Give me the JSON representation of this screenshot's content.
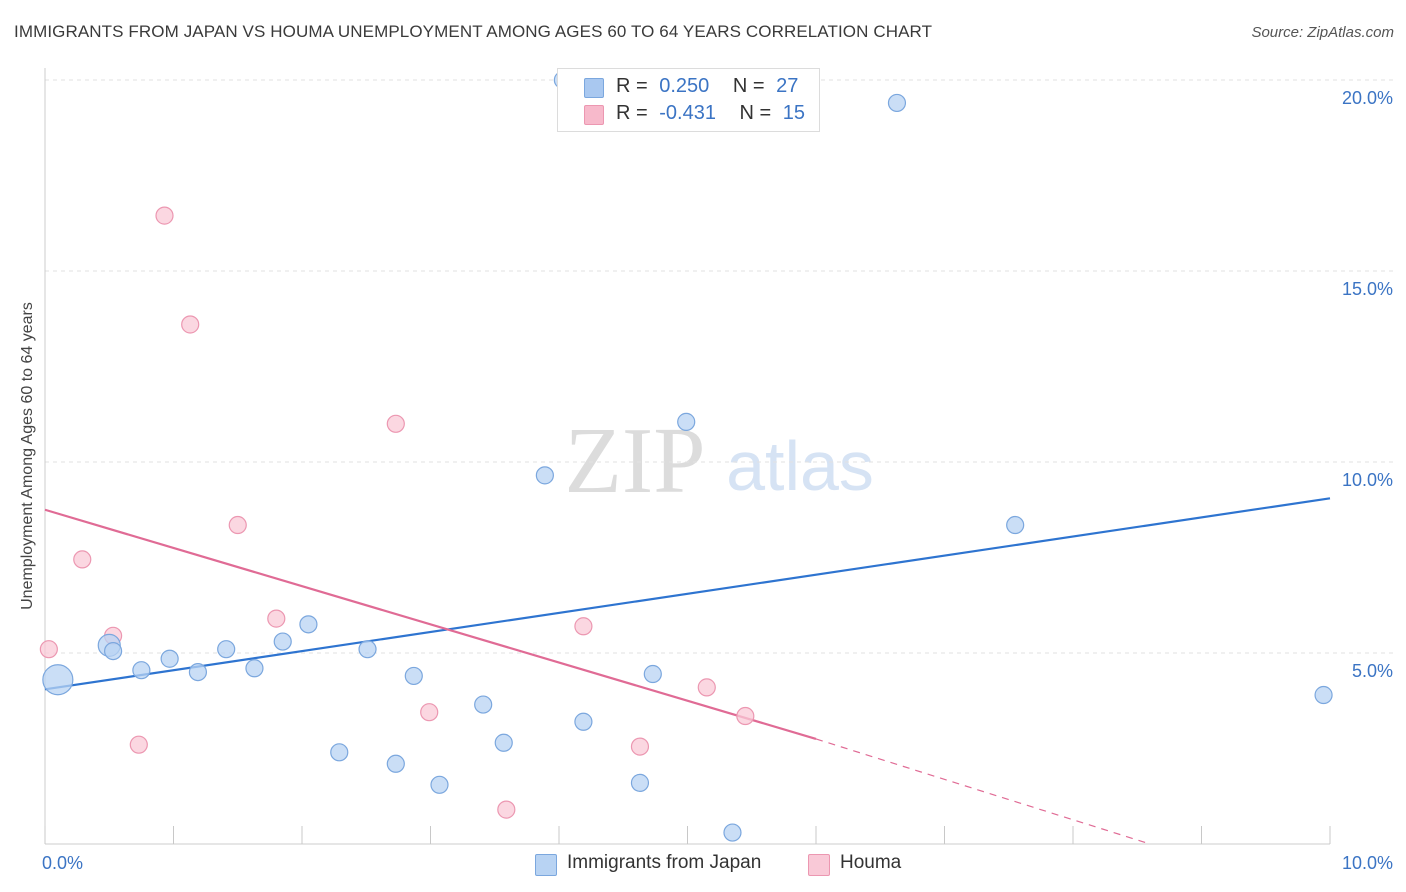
{
  "header": {
    "title": "IMMIGRANTS FROM JAPAN VS HOUMA UNEMPLOYMENT AMONG AGES 60 TO 64 YEARS CORRELATION CHART",
    "source": "Source: ZipAtlas.com"
  },
  "watermark": {
    "zip": "ZIP",
    "atlas": "atlas"
  },
  "legend": {
    "r_label": "R =",
    "n_label": "N =",
    "rows": [
      {
        "r": "0.250",
        "n": "27",
        "color": "#a9c8f0"
      },
      {
        "r": "-0.431",
        "n": "15",
        "color": "#f7b9cb"
      }
    ]
  },
  "colors": {
    "japan_fill": "#b8d3f3",
    "japan_stroke": "#7ba7de",
    "japan_line": "#2e74d0",
    "houma_fill": "#f9c9d7",
    "houma_stroke": "#ec97b1",
    "houma_line": "#e06b95",
    "tick_text": "#3b74c4"
  },
  "chart_data": {
    "type": "scatter",
    "ylabel": "Unemployment Among Ages 60 to 64 years",
    "xlim": [
      0,
      10
    ],
    "ylim": [
      0,
      20
    ],
    "x_ticks": [
      "0.0%",
      "10.0%"
    ],
    "y_ticks": [
      {
        "value": 5,
        "label": "5.0%"
      },
      {
        "value": 10,
        "label": "10.0%"
      },
      {
        "value": 15,
        "label": "15.0%"
      },
      {
        "value": 20,
        "label": "20.0%"
      }
    ],
    "grid": "horizontal dashed",
    "series": [
      {
        "name": "Immigrants from Japan",
        "points": [
          {
            "x": 0.1,
            "y": 4.3,
            "size": 3
          },
          {
            "x": 0.5,
            "y": 5.2,
            "size": 2
          },
          {
            "x": 0.53,
            "y": 5.05,
            "size": 1
          },
          {
            "x": 0.75,
            "y": 4.55,
            "size": 1
          },
          {
            "x": 0.97,
            "y": 4.85,
            "size": 1
          },
          {
            "x": 1.19,
            "y": 4.5,
            "size": 1
          },
          {
            "x": 1.41,
            "y": 5.1,
            "size": 1
          },
          {
            "x": 1.63,
            "y": 4.6,
            "size": 1
          },
          {
            "x": 1.85,
            "y": 5.3,
            "size": 1
          },
          {
            "x": 2.05,
            "y": 5.75,
            "size": 1
          },
          {
            "x": 2.29,
            "y": 2.4,
            "size": 1
          },
          {
            "x": 2.51,
            "y": 5.1,
            "size": 1
          },
          {
            "x": 2.73,
            "y": 2.1,
            "size": 1
          },
          {
            "x": 2.87,
            "y": 4.4,
            "size": 1
          },
          {
            "x": 3.07,
            "y": 1.55,
            "size": 1
          },
          {
            "x": 3.41,
            "y": 3.65,
            "size": 1
          },
          {
            "x": 3.57,
            "y": 2.65,
            "size": 1
          },
          {
            "x": 3.89,
            "y": 9.65,
            "size": 1
          },
          {
            "x": 4.03,
            "y": 20.0,
            "size": 1
          },
          {
            "x": 4.19,
            "y": 3.2,
            "size": 1
          },
          {
            "x": 4.63,
            "y": 1.6,
            "size": 1
          },
          {
            "x": 4.73,
            "y": 4.45,
            "size": 1
          },
          {
            "x": 4.99,
            "y": 11.05,
            "size": 1
          },
          {
            "x": 5.35,
            "y": 0.3,
            "size": 1
          },
          {
            "x": 6.63,
            "y": 19.4,
            "size": 1
          },
          {
            "x": 7.55,
            "y": 8.35,
            "size": 1
          },
          {
            "x": 9.95,
            "y": 3.9,
            "size": 1
          }
        ],
        "trend": {
          "x1": 0,
          "y1": 4.05,
          "x2": 10,
          "y2": 9.05
        }
      },
      {
        "name": "Houma",
        "points": [
          {
            "x": 0.03,
            "y": 5.1,
            "size": 1
          },
          {
            "x": 0.29,
            "y": 7.45,
            "size": 1
          },
          {
            "x": 0.53,
            "y": 5.45,
            "size": 1
          },
          {
            "x": 0.73,
            "y": 2.6,
            "size": 1
          },
          {
            "x": 0.93,
            "y": 16.45,
            "size": 1
          },
          {
            "x": 1.13,
            "y": 13.6,
            "size": 1
          },
          {
            "x": 1.5,
            "y": 8.35,
            "size": 1
          },
          {
            "x": 1.8,
            "y": 5.9,
            "size": 1
          },
          {
            "x": 2.73,
            "y": 11.0,
            "size": 1
          },
          {
            "x": 2.99,
            "y": 3.45,
            "size": 1
          },
          {
            "x": 3.59,
            "y": 0.9,
            "size": 1
          },
          {
            "x": 4.19,
            "y": 5.7,
            "size": 1
          },
          {
            "x": 4.63,
            "y": 2.55,
            "size": 1
          },
          {
            "x": 5.15,
            "y": 4.1,
            "size": 1
          },
          {
            "x": 5.45,
            "y": 3.35,
            "size": 1
          }
        ],
        "trend": {
          "x1": 0,
          "y1": 8.75,
          "x2": 6.0,
          "y2": 2.75,
          "dash_to_x": 8.6,
          "dash_to_y": 0.0
        }
      }
    ]
  }
}
